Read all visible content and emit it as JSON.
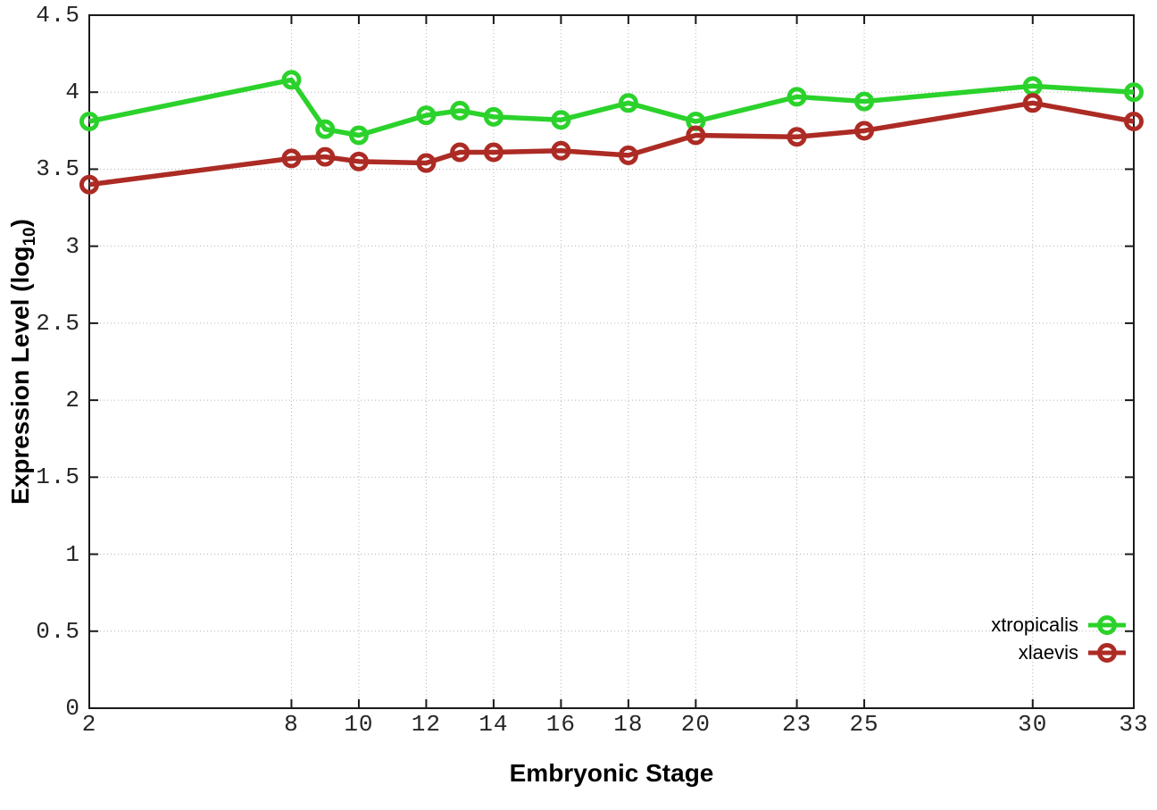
{
  "chart_data": {
    "type": "line",
    "title": "",
    "xlabel": "Embryonic Stage",
    "ylabel": "Expression Level (log10)",
    "ylabel_prefix": "Expression Level (log",
    "ylabel_subscript": "10",
    "ylabel_suffix": ")",
    "x": [
      2,
      8,
      9,
      10,
      12,
      13,
      14,
      16,
      18,
      20,
      23,
      25,
      30,
      33
    ],
    "series": [
      {
        "name": "xtropicalis",
        "color": "#2bd22b",
        "values": [
          3.81,
          4.08,
          3.76,
          3.72,
          3.85,
          3.88,
          3.84,
          3.82,
          3.93,
          3.81,
          3.97,
          3.94,
          4.04,
          4.0
        ]
      },
      {
        "name": "xlaevis",
        "color": "#ac2b24",
        "values": [
          3.4,
          3.57,
          3.58,
          3.55,
          3.54,
          3.61,
          3.61,
          3.62,
          3.59,
          3.72,
          3.71,
          3.75,
          3.93,
          3.81
        ]
      }
    ],
    "xticks": [
      2,
      8,
      10,
      12,
      14,
      16,
      18,
      20,
      23,
      25,
      30,
      33
    ],
    "yticks": [
      0,
      0.5,
      1,
      1.5,
      2,
      2.5,
      3,
      3.5,
      4,
      4.5
    ],
    "xlim": [
      2,
      33
    ],
    "ylim": [
      0,
      4.5
    ],
    "grid": true,
    "legend_position": "bottom-right-inside",
    "marker": "open-circle",
    "colors": {
      "border": "#1a1a1a",
      "grid": "#b3b3b3",
      "tick_text": "#262626"
    }
  }
}
